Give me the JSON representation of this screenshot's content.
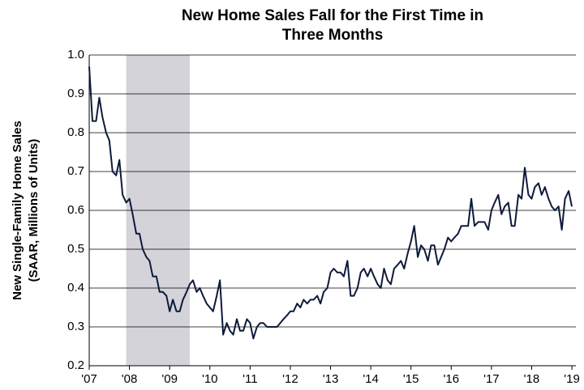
{
  "chart_data": {
    "type": "line",
    "title": [
      "New Home Sales Fall for the First Time in",
      "Three Months"
    ],
    "y_label": [
      "New Single-Family Home Sales",
      "(SAAR, Millions of Units)"
    ],
    "shaded_regions": [
      [
        2007.92,
        2009.5
      ]
    ],
    "shade_color": "#d4d3d9",
    "x": [
      2007.0,
      2007.08,
      2007.17,
      2007.25,
      2007.33,
      2007.42,
      2007.5,
      2007.58,
      2007.67,
      2007.75,
      2007.83,
      2007.92,
      2008.0,
      2008.08,
      2008.17,
      2008.25,
      2008.33,
      2008.42,
      2008.5,
      2008.58,
      2008.67,
      2008.75,
      2008.83,
      2008.92,
      2009.0,
      2009.08,
      2009.17,
      2009.25,
      2009.33,
      2009.42,
      2009.5,
      2009.58,
      2009.67,
      2009.75,
      2009.83,
      2009.92,
      2010.0,
      2010.08,
      2010.17,
      2010.25,
      2010.33,
      2010.42,
      2010.5,
      2010.58,
      2010.67,
      2010.75,
      2010.83,
      2010.92,
      2011.0,
      2011.08,
      2011.17,
      2011.25,
      2011.33,
      2011.42,
      2011.5,
      2011.58,
      2011.67,
      2011.75,
      2011.83,
      2011.92,
      2012.0,
      2012.08,
      2012.17,
      2012.25,
      2012.33,
      2012.42,
      2012.5,
      2012.58,
      2012.67,
      2012.75,
      2012.83,
      2012.92,
      2013.0,
      2013.08,
      2013.17,
      2013.25,
      2013.33,
      2013.42,
      2013.5,
      2013.58,
      2013.67,
      2013.75,
      2013.83,
      2013.92,
      2014.0,
      2014.08,
      2014.17,
      2014.25,
      2014.33,
      2014.42,
      2014.5,
      2014.58,
      2014.67,
      2014.75,
      2014.83,
      2014.92,
      2015.0,
      2015.08,
      2015.17,
      2015.25,
      2015.33,
      2015.42,
      2015.5,
      2015.58,
      2015.67,
      2015.75,
      2015.83,
      2015.92,
      2016.0,
      2016.08,
      2016.17,
      2016.25,
      2016.33,
      2016.42,
      2016.5,
      2016.58,
      2016.67,
      2016.75,
      2016.83,
      2016.92,
      2017.0,
      2017.08,
      2017.17,
      2017.25,
      2017.33,
      2017.42,
      2017.5,
      2017.58,
      2017.67,
      2017.75,
      2017.83,
      2017.92,
      2018.0,
      2018.08,
      2018.17,
      2018.25,
      2018.33,
      2018.42,
      2018.5,
      2018.58,
      2018.67,
      2018.75,
      2018.83,
      2018.92,
      2019.0
    ],
    "series": [
      {
        "color": "#0d1a3a",
        "values": [
          0.97,
          0.83,
          0.83,
          0.89,
          0.84,
          0.8,
          0.78,
          0.7,
          0.69,
          0.73,
          0.64,
          0.62,
          0.63,
          0.59,
          0.54,
          0.54,
          0.5,
          0.48,
          0.47,
          0.43,
          0.43,
          0.39,
          0.39,
          0.38,
          0.34,
          0.37,
          0.34,
          0.34,
          0.37,
          0.39,
          0.41,
          0.42,
          0.39,
          0.4,
          0.38,
          0.36,
          0.35,
          0.34,
          0.38,
          0.42,
          0.28,
          0.31,
          0.29,
          0.28,
          0.32,
          0.29,
          0.29,
          0.32,
          0.31,
          0.27,
          0.3,
          0.31,
          0.31,
          0.3,
          0.3,
          0.3,
          0.3,
          0.31,
          0.32,
          0.33,
          0.34,
          0.34,
          0.36,
          0.35,
          0.37,
          0.36,
          0.37,
          0.37,
          0.38,
          0.36,
          0.39,
          0.4,
          0.44,
          0.45,
          0.44,
          0.44,
          0.43,
          0.47,
          0.38,
          0.38,
          0.4,
          0.44,
          0.45,
          0.43,
          0.45,
          0.43,
          0.41,
          0.4,
          0.45,
          0.42,
          0.41,
          0.45,
          0.46,
          0.47,
          0.45,
          0.49,
          0.52,
          0.56,
          0.48,
          0.51,
          0.5,
          0.47,
          0.51,
          0.51,
          0.46,
          0.48,
          0.5,
          0.53,
          0.52,
          0.53,
          0.54,
          0.56,
          0.56,
          0.56,
          0.63,
          0.56,
          0.57,
          0.57,
          0.57,
          0.55,
          0.6,
          0.62,
          0.64,
          0.59,
          0.61,
          0.62,
          0.56,
          0.56,
          0.64,
          0.63,
          0.71,
          0.64,
          0.63,
          0.66,
          0.67,
          0.64,
          0.66,
          0.63,
          0.61,
          0.6,
          0.61,
          0.55,
          0.63,
          0.65,
          0.61
        ]
      }
    ],
    "xlim": [
      2007,
      2019.1
    ],
    "xticks": [
      {
        "value": 2007,
        "label": "'07"
      },
      {
        "value": 2008,
        "label": "'08"
      },
      {
        "value": 2009,
        "label": "'09"
      },
      {
        "value": 2010,
        "label": "'10"
      },
      {
        "value": 2011,
        "label": "'11"
      },
      {
        "value": 2012,
        "label": "'12"
      },
      {
        "value": 2013,
        "label": "'13"
      },
      {
        "value": 2014,
        "label": "'14"
      },
      {
        "value": 2015,
        "label": "'15"
      },
      {
        "value": 2016,
        "label": "'16"
      },
      {
        "value": 2017,
        "label": "'17"
      },
      {
        "value": 2018,
        "label": "'18"
      },
      {
        "value": 2019,
        "label": "'19"
      }
    ],
    "ylim": [
      0.2,
      1.0
    ],
    "yticks": [
      0.2,
      0.3,
      0.4,
      0.5,
      0.6,
      0.7,
      0.8,
      0.9,
      {
        "value": 1.0,
        "label": "1.0"
      }
    ],
    "grid": true
  }
}
